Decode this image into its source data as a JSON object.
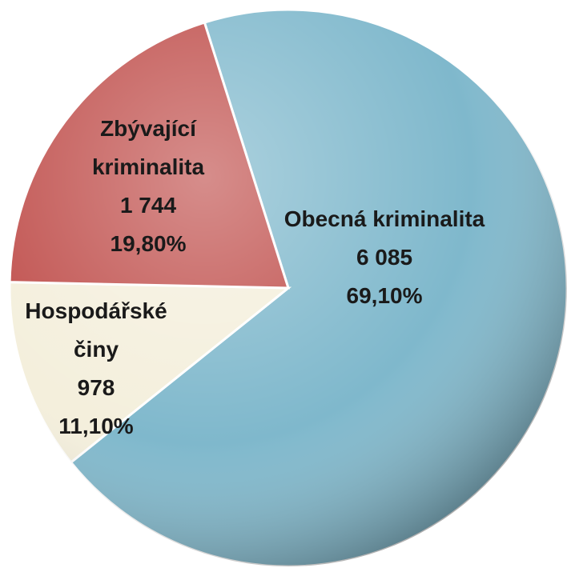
{
  "chart_data": {
    "type": "pie",
    "categories": [
      "Obecná kriminalita",
      "Hospodářské činy",
      "Zbývající kriminalita"
    ],
    "values": [
      6085,
      978,
      1744
    ],
    "value_labels": [
      "6 085",
      "978",
      "1 744"
    ],
    "percentages": [
      69.1,
      11.1,
      19.8
    ],
    "percentage_labels": [
      "69,10%",
      "11,10%",
      "19,80%"
    ],
    "colors": [
      "#7fb8cc",
      "#f4efdc",
      "#c0504d"
    ]
  }
}
